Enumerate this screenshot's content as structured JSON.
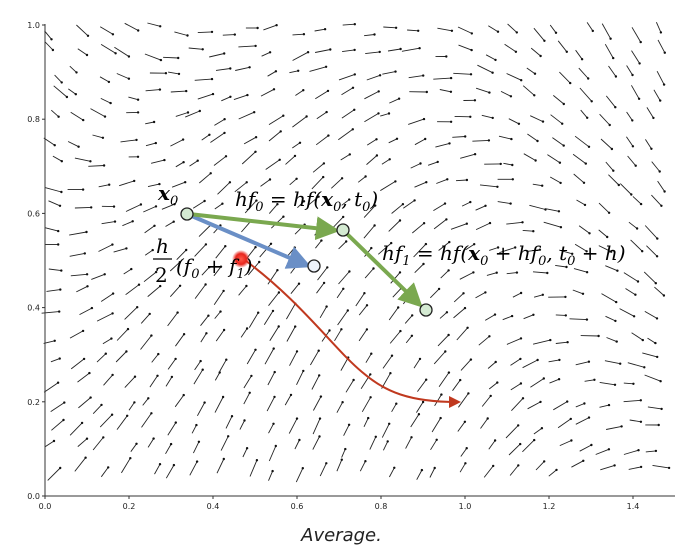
{
  "x_ticks": [
    "0.0",
    "0.2",
    "0.4",
    "0.6",
    "0.8",
    "1.0",
    "1.2",
    "1.4"
  ],
  "y_ticks": [
    "0.0",
    "0.2",
    "0.4",
    "0.6",
    "0.8",
    "1.0"
  ],
  "labels": {
    "x0": "x",
    "x0_sub": "0",
    "hf0": "hf",
    "hf0_sub": "0",
    "hf0_rhs": " = hf(",
    "hf0_x": "x",
    "hf0_tail_sub": "0",
    "hf0_t": ", t",
    "hf0_close": ")",
    "hf1": "hf",
    "hf1_sub": "1",
    "hf1_rhs": " = hf(",
    "hf1_x": "x",
    "hf1_plus": " + hf",
    "hf1_t": ", t",
    "hf1_end": " + h)",
    "avg_num": "h",
    "avg_den": "2",
    "avg_open": "(f",
    "avg_plus": " + f",
    "avg_close": ")"
  },
  "caption": "Average.",
  "colors": {
    "green_arrow": "#7aa84f",
    "blue_arrow": "#6a8fc6",
    "red_curve": "#c0391f",
    "node_fill": "#d4ead2",
    "node_fill_blue": "#eef3fb",
    "red_dot": "#e8241c"
  }
}
